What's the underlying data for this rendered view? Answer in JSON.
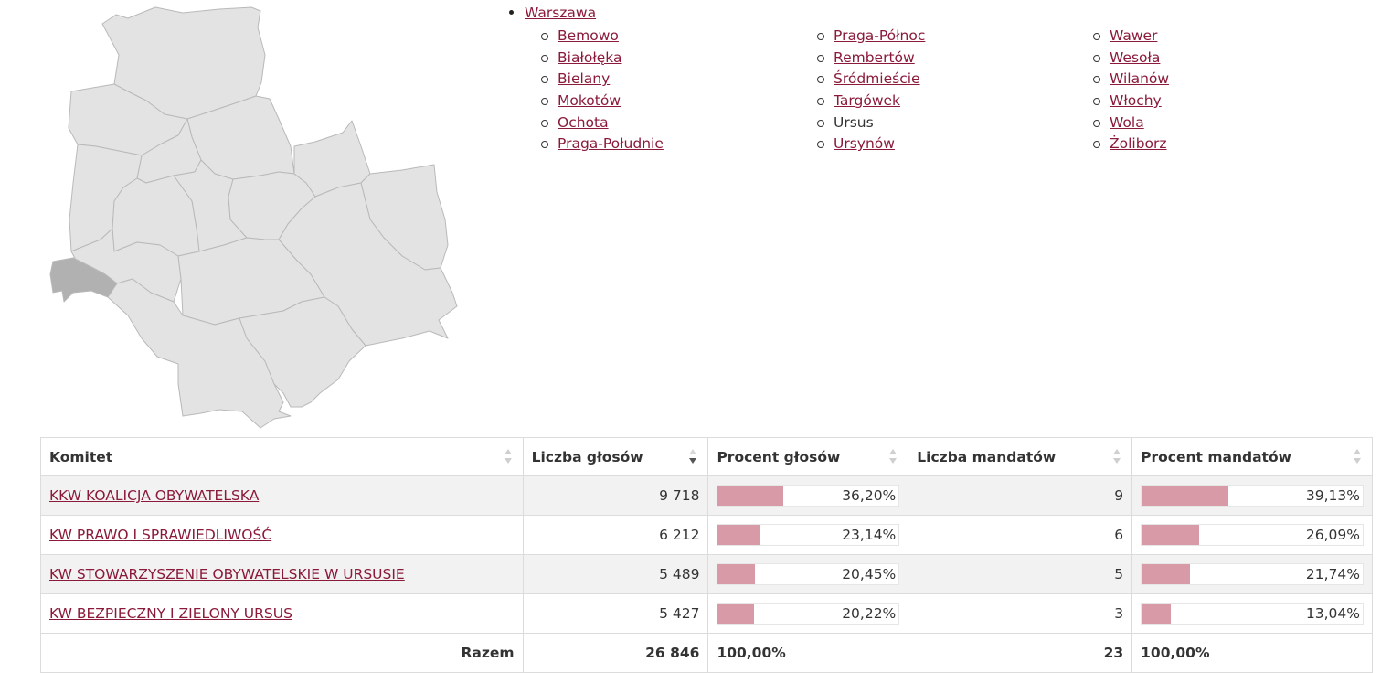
{
  "breadcrumb": {
    "city": "Warszawa",
    "districts": [
      {
        "label": "Bemowo",
        "link": true
      },
      {
        "label": "Białołęka",
        "link": true
      },
      {
        "label": "Bielany",
        "link": true
      },
      {
        "label": "Mokotów",
        "link": true
      },
      {
        "label": "Ochota",
        "link": true
      },
      {
        "label": "Praga-Południe",
        "link": true
      },
      {
        "label": "Praga-Północ",
        "link": true
      },
      {
        "label": "Rembertów",
        "link": true
      },
      {
        "label": "Śródmieście",
        "link": true
      },
      {
        "label": "Targówek",
        "link": true
      },
      {
        "label": "Ursus",
        "link": false
      },
      {
        "label": "Ursynów",
        "link": true
      },
      {
        "label": "Wawer",
        "link": true
      },
      {
        "label": "Wesoła",
        "link": true
      },
      {
        "label": "Wilanów",
        "link": true
      },
      {
        "label": "Włochy",
        "link": true
      },
      {
        "label": "Wola",
        "link": true
      },
      {
        "label": "Żoliborz",
        "link": true
      }
    ]
  },
  "map": {
    "highlighted_district": "Ursus",
    "highlight_color": "#b1b1b1",
    "base_color": "#e3e3e3"
  },
  "table": {
    "headers": {
      "committee": "Komitet",
      "votes": "Liczba głosów",
      "vote_pct": "Procent głosów",
      "seats": "Liczba mandatów",
      "seat_pct": "Procent mandatów"
    },
    "sorted_column": "votes",
    "rows": [
      {
        "committee": "KKW KOALICJA OBYWATELSKA",
        "votes": "9 718",
        "vote_pct": "36,20%",
        "seats": "9",
        "seat_pct": "39,13%"
      },
      {
        "committee": "KW PRAWO I SPRAWIEDLIWOŚĆ",
        "votes": "6 212",
        "vote_pct": "23,14%",
        "seats": "6",
        "seat_pct": "26,09%"
      },
      {
        "committee": "KW STOWARZYSZENIE OBYWATELSKIE W URSUSIE",
        "votes": "5 489",
        "vote_pct": "20,45%",
        "seats": "5",
        "seat_pct": "21,74%"
      },
      {
        "committee": "KW BEZPIECZNY I ZIELONY URSUS",
        "votes": "5 427",
        "vote_pct": "20,22%",
        "seats": "3",
        "seat_pct": "13,04%"
      }
    ],
    "total": {
      "label": "Razem",
      "votes": "26 846",
      "vote_pct": "100,00%",
      "seats": "23",
      "seat_pct": "100,00%"
    }
  },
  "colors": {
    "link": "#8b1a3a",
    "bar_fill": "#d99aa8",
    "row_stripe": "#f2f2f2"
  }
}
